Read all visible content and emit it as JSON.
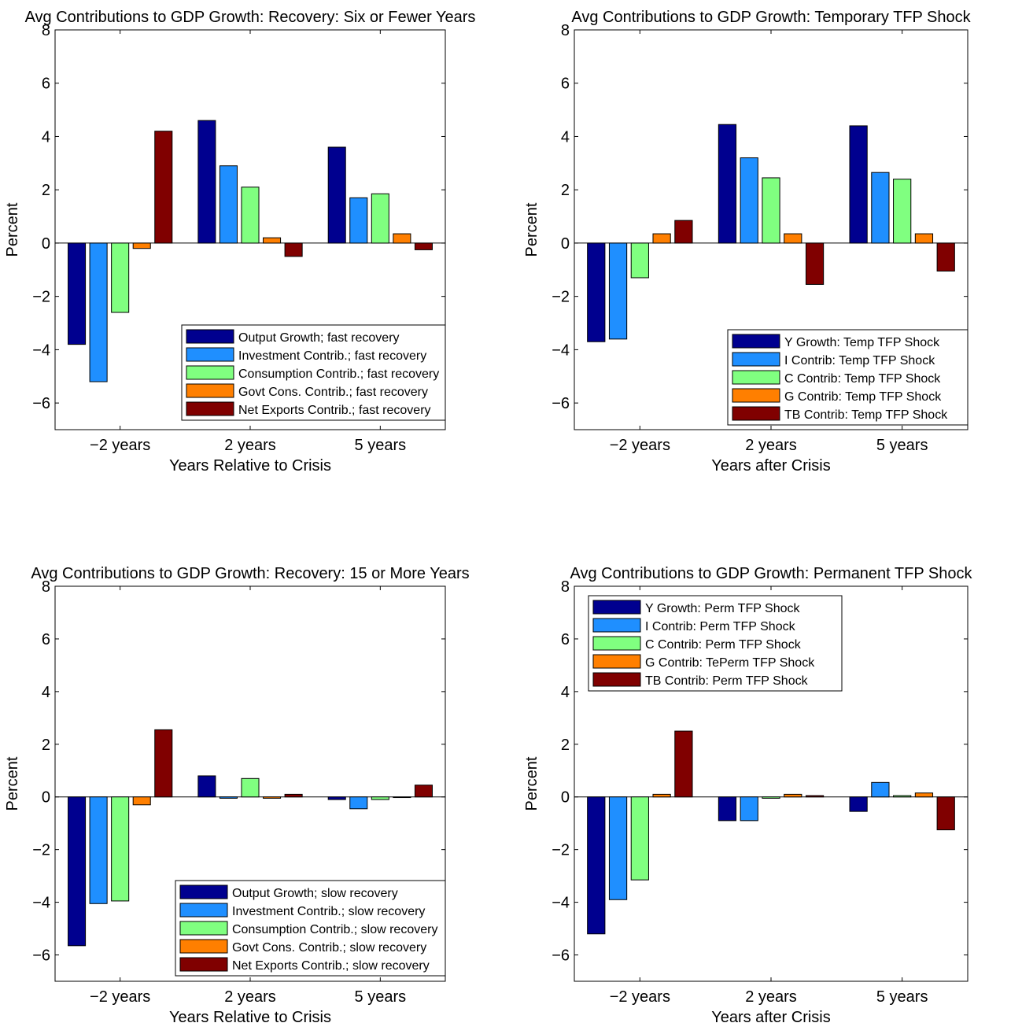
{
  "colors": {
    "series": [
      "#00008f",
      "#1f8fff",
      "#80ff80",
      "#ff7f00",
      "#800000"
    ],
    "bar_stroke": "#000000",
    "axis": "#000000",
    "background": "#ffffff"
  },
  "chart_data": [
    {
      "type": "bar",
      "title": "Avg Contributions to GDP Growth: Recovery: Six or Fewer Years",
      "xlabel": "Years Relative to Crisis",
      "ylabel": "Percent",
      "categories": [
        "−2 years",
        "2 years",
        "5 years"
      ],
      "ylim": [
        -7,
        8
      ],
      "yticks": [
        8,
        6,
        4,
        2,
        0,
        -2,
        -4,
        -6
      ],
      "ytick_labels": [
        "8",
        "6",
        "4",
        "2",
        "0",
        "−2",
        "−4",
        "−6"
      ],
      "grid": false,
      "legend_position": "bottom-right",
      "series": [
        {
          "name": "Output Growth; fast recovery",
          "values": [
            -3.8,
            4.6,
            3.6
          ]
        },
        {
          "name": "Investment Contrib.; fast recovery",
          "values": [
            -5.2,
            2.9,
            1.7
          ]
        },
        {
          "name": "Consumption Contrib.; fast recovery",
          "values": [
            -2.6,
            2.1,
            1.85
          ]
        },
        {
          "name": "Govt Cons. Contrib.; fast recovery",
          "values": [
            -0.2,
            0.2,
            0.35
          ]
        },
        {
          "name": "Net Exports Contrib.; fast recovery",
          "values": [
            4.2,
            -0.5,
            -0.25
          ]
        }
      ]
    },
    {
      "type": "bar",
      "title": "Avg Contributions to GDP Growth: Temporary TFP Shock",
      "xlabel": "Years after Crisis",
      "ylabel": "Percent",
      "categories": [
        "−2 years",
        "2 years",
        "5 years"
      ],
      "ylim": [
        -7,
        8
      ],
      "yticks": [
        8,
        6,
        4,
        2,
        0,
        -2,
        -4,
        -6
      ],
      "ytick_labels": [
        "8",
        "6",
        "4",
        "2",
        "0",
        "−2",
        "−4",
        "−6"
      ],
      "grid": false,
      "legend_position": "bottom-right",
      "series": [
        {
          "name": "Y Growth: Temp TFP Shock",
          "values": [
            -3.7,
            4.45,
            4.4
          ]
        },
        {
          "name": "I Contrib: Temp TFP Shock",
          "values": [
            -3.6,
            3.2,
            2.65
          ]
        },
        {
          "name": "C Contrib: Temp TFP Shock",
          "values": [
            -1.3,
            2.45,
            2.4
          ]
        },
        {
          "name": "G Contrib: Temp TFP Shock",
          "values": [
            0.35,
            0.35,
            0.35
          ]
        },
        {
          "name": "TB Contrib: Temp TFP Shock",
          "values": [
            0.85,
            -1.55,
            -1.05
          ]
        }
      ]
    },
    {
      "type": "bar",
      "title": "Avg Contributions to GDP Growth: Recovery: 15 or More Years",
      "xlabel": "Years Relative to Crisis",
      "ylabel": "Percent",
      "categories": [
        "−2 years",
        "2 years",
        "5 years"
      ],
      "ylim": [
        -7,
        8
      ],
      "yticks": [
        8,
        6,
        4,
        2,
        0,
        -2,
        -4,
        -6
      ],
      "ytick_labels": [
        "8",
        "6",
        "4",
        "2",
        "0",
        "−2",
        "−4",
        "−6"
      ],
      "grid": false,
      "legend_position": "bottom-right",
      "series": [
        {
          "name": "Output Growth; slow recovery",
          "values": [
            -5.65,
            0.8,
            -0.1
          ]
        },
        {
          "name": "Investment Contrib.; slow recovery",
          "values": [
            -4.05,
            -0.05,
            -0.45
          ]
        },
        {
          "name": "Consumption Contrib.; slow recovery",
          "values": [
            -3.95,
            0.7,
            -0.1
          ]
        },
        {
          "name": "Govt Cons. Contrib.; slow recovery",
          "values": [
            -0.3,
            -0.05,
            0.0
          ]
        },
        {
          "name": "Net Exports Contrib.; slow recovery",
          "values": [
            2.55,
            0.1,
            0.45
          ]
        }
      ]
    },
    {
      "type": "bar",
      "title": "Avg Contributions to GDP Growth: Permanent TFP Shock",
      "xlabel": "Years after Crisis",
      "ylabel": "Percent",
      "categories": [
        "−2 years",
        "2 years",
        "5 years"
      ],
      "ylim": [
        -7,
        8
      ],
      "yticks": [
        8,
        6,
        4,
        2,
        0,
        -2,
        -4,
        -6
      ],
      "ytick_labels": [
        "8",
        "6",
        "4",
        "2",
        "0",
        "−2",
        "−4",
        "−6"
      ],
      "grid": false,
      "legend_position": "top-left",
      "series": [
        {
          "name": "Y Growth: Perm TFP Shock",
          "values": [
            -5.2,
            -0.9,
            -0.55
          ]
        },
        {
          "name": "I Contrib: Perm TFP Shock",
          "values": [
            -3.9,
            -0.9,
            0.55
          ]
        },
        {
          "name": "C Contrib: Perm TFP Shock",
          "values": [
            -3.15,
            -0.05,
            0.05
          ]
        },
        {
          "name": "G Contrib: TePerm TFP Shock",
          "values": [
            0.1,
            0.1,
            0.15
          ]
        },
        {
          "name": "TB Contrib: Perm TFP Shock",
          "values": [
            2.5,
            0.05,
            -1.25
          ]
        }
      ]
    }
  ]
}
